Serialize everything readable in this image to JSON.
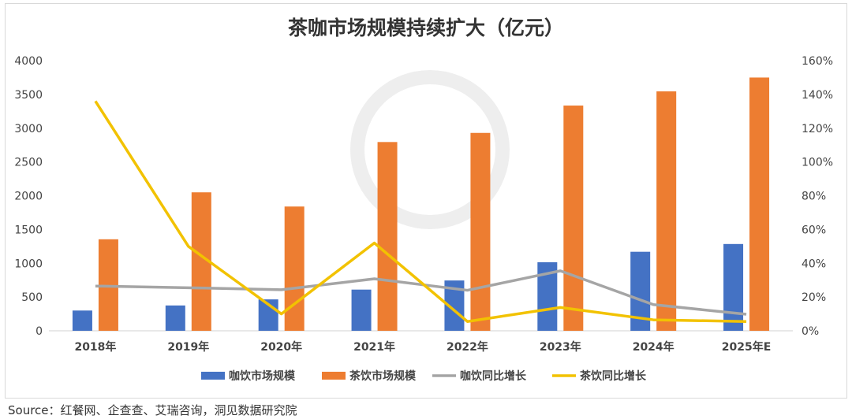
{
  "chart_data": {
    "type": "bar+line",
    "title": "茶咖市场规模持续扩大（亿元）",
    "categories": [
      "2018年",
      "2019年",
      "2020年",
      "2021年",
      "2022年",
      "2023年",
      "2024年",
      "2025年E"
    ],
    "bar_series": [
      {
        "name": "咖饮市场规模",
        "color": "#4472C4",
        "axis": "left",
        "values": [
          300,
          375,
          465,
          610,
          745,
          1015,
          1170,
          1285
        ]
      },
      {
        "name": "茶饮市场规模",
        "color": "#ED7D31",
        "axis": "left",
        "values": [
          1355,
          2050,
          1840,
          2795,
          2930,
          3335,
          3545,
          3750
        ]
      }
    ],
    "line_series": [
      {
        "name": "咖饮同比增长",
        "color": "#A5A5A5",
        "axis": "right",
        "values": [
          26.5,
          25.5,
          24.3,
          30.8,
          24,
          35.5,
          15.5,
          9.8
        ]
      },
      {
        "name": "茶饮同比增长",
        "color": "#F2C200",
        "axis": "right",
        "values": [
          136,
          50,
          10,
          52,
          5.5,
          13.8,
          6.5,
          5.5
        ]
      }
    ],
    "ylim_left": [
      0,
      4000
    ],
    "yticks_left": [
      "0",
      "500",
      "1000",
      "1500",
      "2000",
      "2500",
      "3000",
      "3500",
      "4000"
    ],
    "ylim_right": [
      0,
      160
    ],
    "yticks_right": [
      "0%",
      "20%",
      "40%",
      "60%",
      "80%",
      "100%",
      "120%",
      "140%",
      "160%"
    ],
    "legend_position": "bottom",
    "grid": false
  },
  "source": "Source：红餐网、企查查、艾瑞咨询，洞见数据研究院"
}
